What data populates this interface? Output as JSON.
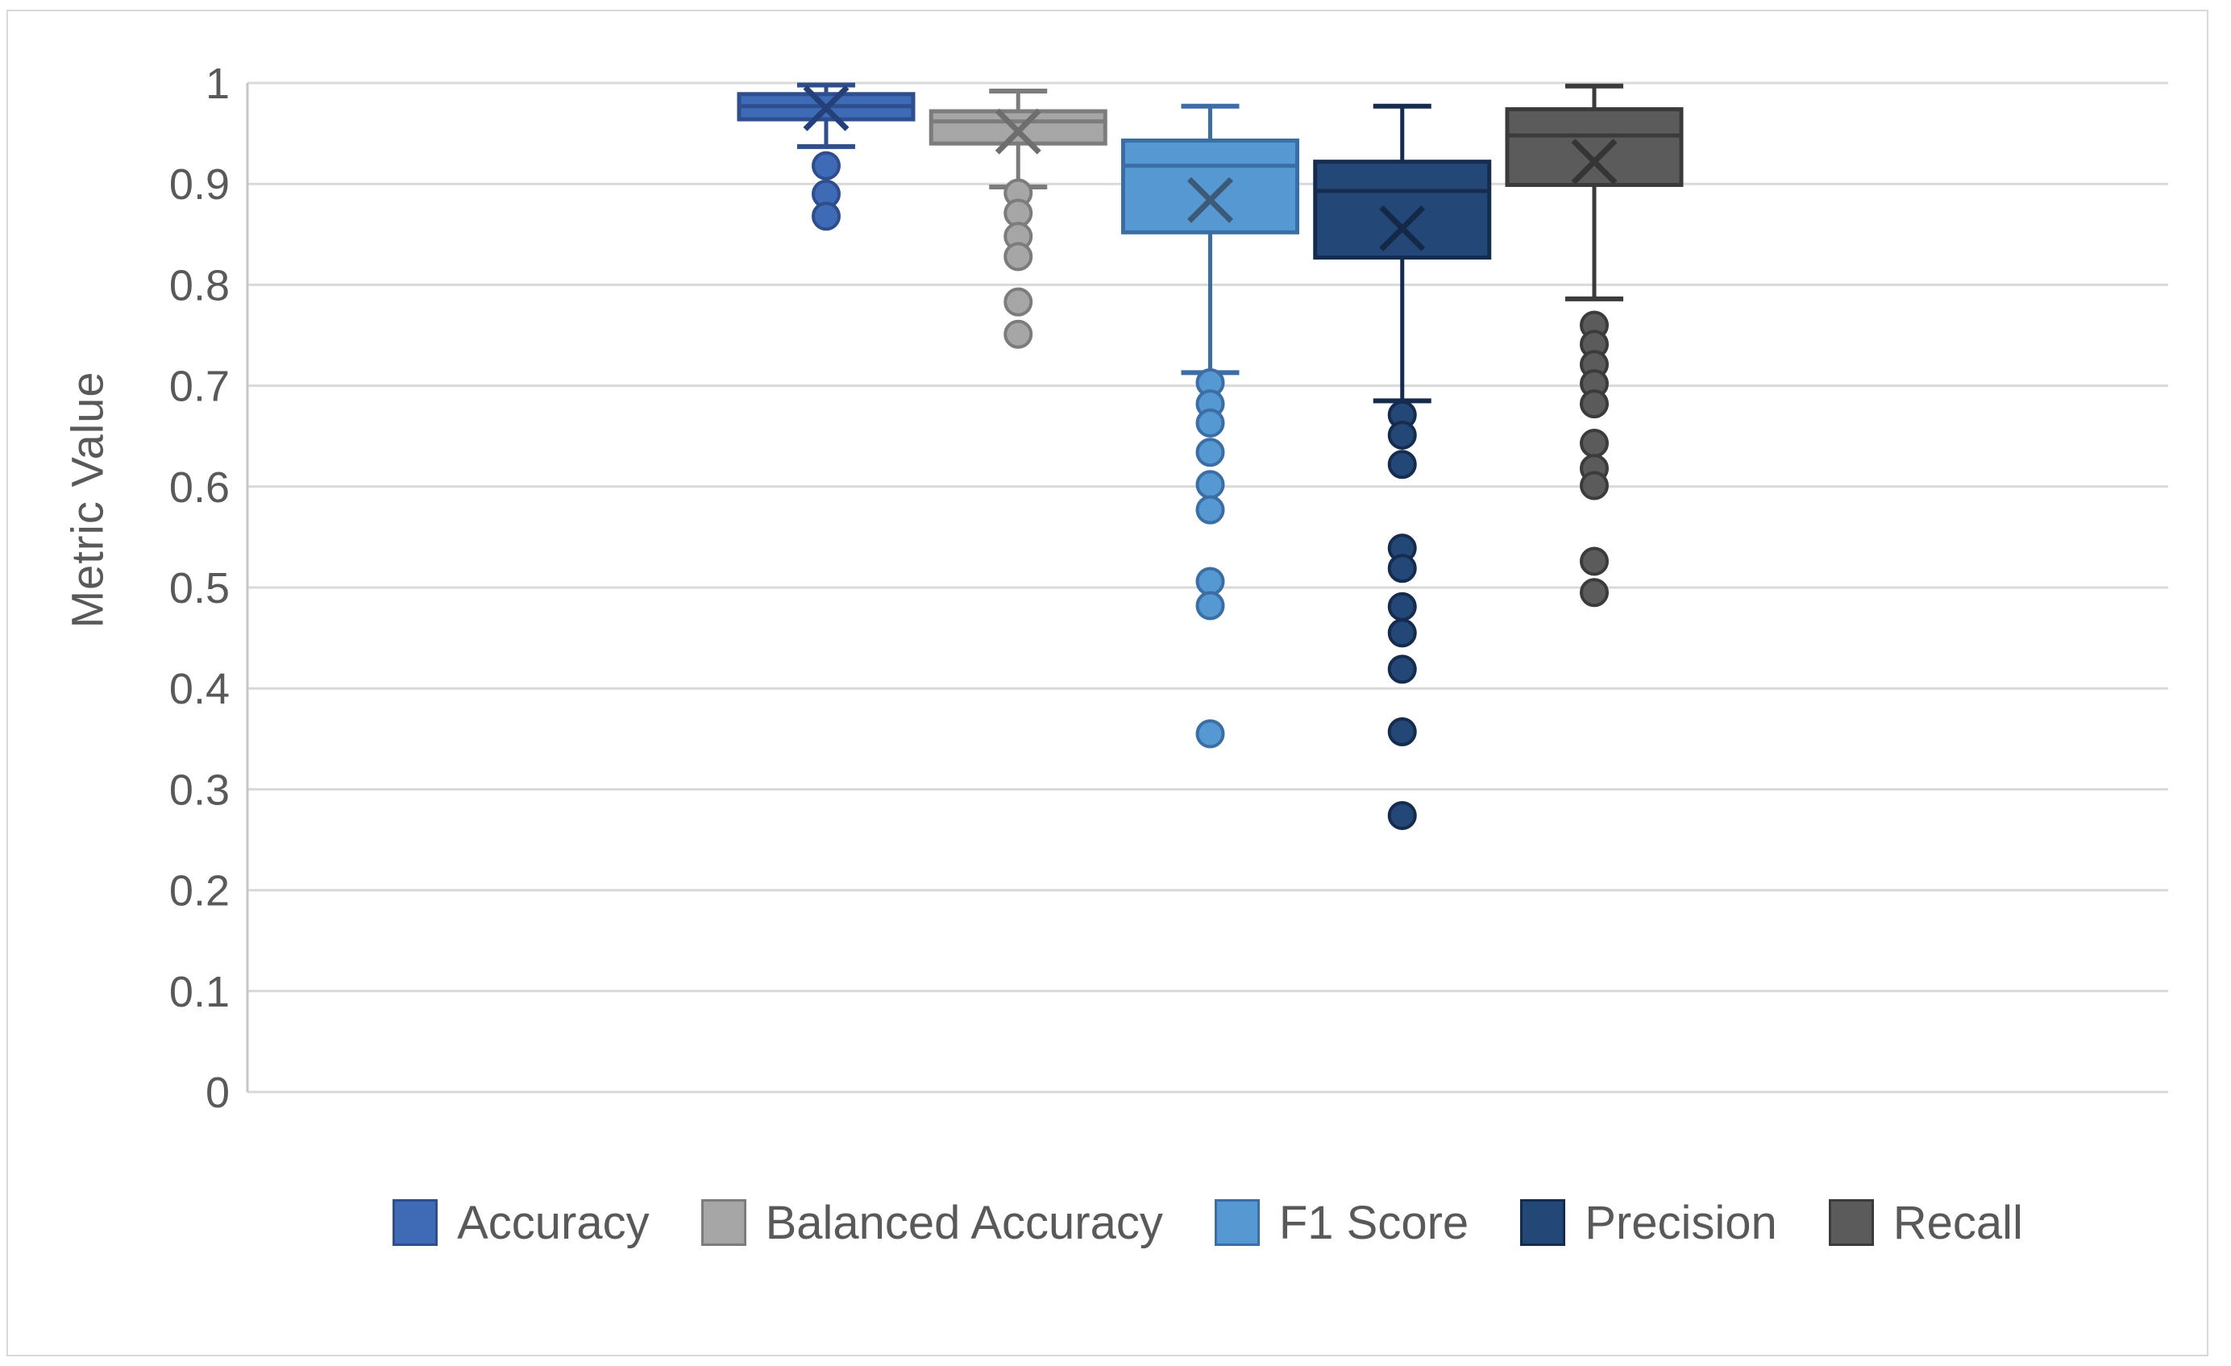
{
  "figure": {
    "background": "#ffffff",
    "frame_border_color": "#d8d8d8",
    "gridline_color": "#d9d9d9",
    "axis_line_color": "#c6c6c6",
    "text_color": "#595959"
  },
  "y_axis": {
    "title": "Metric Value",
    "tick_labels": [
      "0",
      "0.1",
      "0.2",
      "0.3",
      "0.4",
      "0.5",
      "0.6",
      "0.7",
      "0.8",
      "0.9",
      "1"
    ],
    "tick_values": [
      0,
      0.1,
      0.2,
      0.3,
      0.4,
      0.5,
      0.6,
      0.7,
      0.8,
      0.9,
      1
    ]
  },
  "chart_data": {
    "type": "boxplot",
    "title": "",
    "xlabel": "",
    "ylabel": "Metric Value",
    "ylim": [
      0,
      1
    ],
    "grid": "horizontal",
    "legend_position": "bottom",
    "series": [
      {
        "name": "Accuracy",
        "fill": "#3f6bb6",
        "border": "#2e4e8e",
        "marker": "#24407a",
        "whisker_low": 0.937,
        "q1": 0.964,
        "median": 0.977,
        "q3": 0.989,
        "whisker_high": 0.998,
        "mean": 0.975,
        "outliers": [
          0.918,
          0.89,
          0.868
        ]
      },
      {
        "name": "Balanced Accuracy",
        "fill": "#a6a6a6",
        "border": "#7c7c7c",
        "marker": "#6e6e6e",
        "whisker_low": 0.897,
        "q1": 0.94,
        "median": 0.962,
        "q3": 0.972,
        "whisker_high": 0.992,
        "mean": 0.952,
        "outliers": [
          0.891,
          0.871,
          0.848,
          0.828,
          0.783,
          0.751
        ]
      },
      {
        "name": "F1 Score",
        "fill": "#5598d2",
        "border": "#3a6ea5",
        "marker": "#3c5a77",
        "whisker_low": 0.713,
        "q1": 0.852,
        "median": 0.918,
        "q3": 0.943,
        "whisker_high": 0.977,
        "mean": 0.884,
        "outliers": [
          0.703,
          0.682,
          0.663,
          0.634,
          0.602,
          0.577,
          0.506,
          0.482,
          0.355
        ]
      },
      {
        "name": "Precision",
        "fill": "#234776",
        "border": "#152c4e",
        "marker": "#142948",
        "whisker_low": 0.685,
        "q1": 0.827,
        "median": 0.893,
        "q3": 0.922,
        "whisker_high": 0.977,
        "mean": 0.856,
        "outliers": [
          0.671,
          0.651,
          0.622,
          0.539,
          0.519,
          0.481,
          0.455,
          0.419,
          0.357,
          0.274
        ]
      },
      {
        "name": "Recall",
        "fill": "#5b5b5b",
        "border": "#3b3b3b",
        "marker": "#353535",
        "whisker_low": 0.786,
        "q1": 0.899,
        "median": 0.948,
        "q3": 0.974,
        "whisker_high": 0.997,
        "mean": 0.922,
        "outliers": [
          0.76,
          0.741,
          0.721,
          0.702,
          0.682,
          0.643,
          0.618,
          0.601,
          0.526,
          0.495
        ]
      }
    ]
  }
}
